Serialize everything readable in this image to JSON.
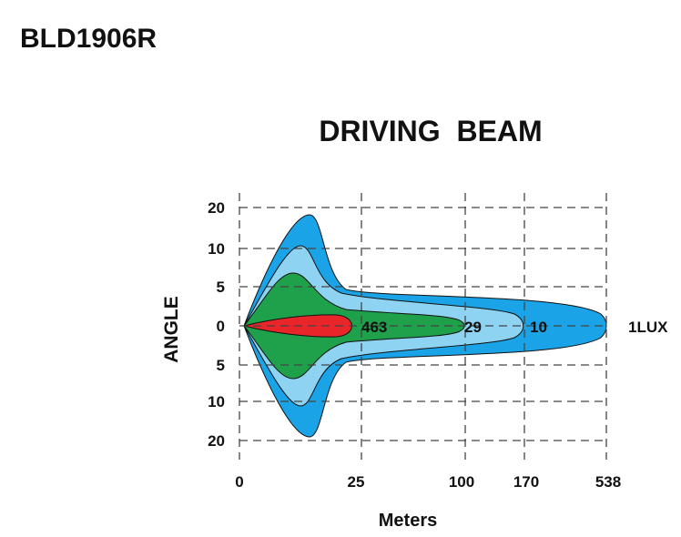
{
  "header": {
    "model": "BLD1906R"
  },
  "chart": {
    "title": "DRIVING  BEAM",
    "y_label": "ANGLE",
    "x_label": "Meters",
    "x_ticks": [
      "0",
      "25",
      "100",
      "170",
      "538"
    ],
    "y_ticks": [
      "20",
      "10",
      "5",
      "0",
      "5",
      "10",
      "20"
    ],
    "contours": [
      {
        "label": "463",
        "color": "#e8262a"
      },
      {
        "label": "29",
        "color": "#1fa04a"
      },
      {
        "label": "10",
        "color": "#8fd3f2"
      },
      {
        "label": "1LUX",
        "color": "#1aa3e6"
      }
    ]
  }
}
